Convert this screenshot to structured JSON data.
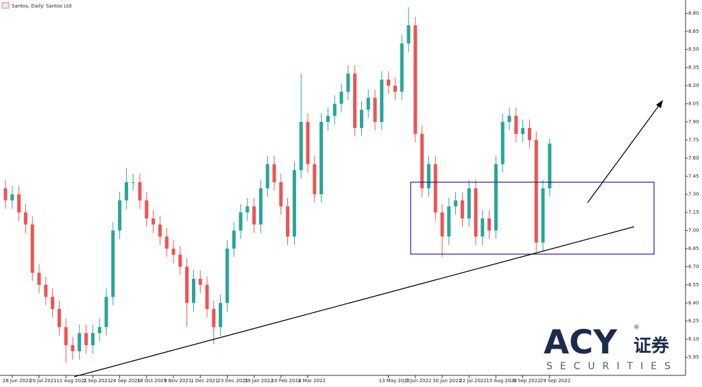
{
  "chart_data": {
    "type": "candlestick",
    "title": "Santos, Daily: Santos Ltd",
    "categories": [
      null,
      "28 Jun 2021",
      null,
      null,
      null,
      "20 Jul 2021",
      null,
      null,
      null,
      "11 Aug 2021",
      null,
      null,
      null,
      "2 Sep 2021",
      null,
      null,
      null,
      "24 Sep 2021",
      null,
      null,
      null,
      "18 Oct 2021",
      null,
      null,
      null,
      "9 Nov 2021",
      null,
      null,
      null,
      "1 Dec 2021",
      null,
      null,
      null,
      "23 Dec 2021",
      null,
      null,
      null,
      "19 Jan 2022",
      null,
      null,
      null,
      "10 Feb 2022",
      null,
      null,
      null,
      "4 Mar 2022",
      null,
      null,
      null,
      null,
      null,
      null,
      null,
      null,
      null,
      null,
      null,
      "13 May 2022",
      null,
      null,
      null,
      "7 Jun 2022",
      null,
      null,
      null,
      "30 Jun 2022",
      null,
      null,
      null,
      "22 Jul 2022",
      null,
      null,
      null,
      "15 Aug 2022",
      null,
      null,
      null,
      "6 Sep 2022",
      null,
      null,
      null,
      "29 Sep 2022"
    ],
    "open": [
      7.35,
      7.25,
      7.3,
      7.15,
      7.05,
      6.65,
      6.55,
      6.45,
      6.35,
      6.2,
      6.05,
      6.0,
      6.15,
      6.05,
      6.15,
      6.2,
      6.45,
      7.0,
      7.25,
      7.4,
      7.4,
      7.25,
      7.1,
      7.05,
      6.95,
      6.85,
      6.8,
      6.7,
      6.4,
      6.6,
      6.55,
      6.35,
      6.2,
      6.4,
      6.85,
      7.0,
      7.15,
      7.2,
      7.05,
      7.35,
      7.55,
      7.4,
      7.2,
      6.95,
      7.5,
      7.9,
      7.55,
      7.3,
      7.9,
      7.95,
      8.05,
      8.15,
      8.3,
      7.85,
      8.0,
      8.1,
      7.9,
      8.25,
      8.2,
      8.15,
      8.55,
      8.7,
      7.8,
      7.35,
      7.55,
      7.15,
      6.95,
      7.2,
      7.25,
      7.1,
      7.35,
      6.95,
      7.1,
      7.0,
      7.55,
      7.9,
      7.95,
      7.8,
      7.85,
      7.75,
      6.9,
      7.35
    ],
    "high": [
      7.42,
      7.37,
      7.37,
      7.22,
      7.12,
      6.72,
      6.62,
      6.52,
      6.42,
      6.27,
      6.12,
      6.22,
      6.22,
      6.22,
      6.27,
      6.52,
      7.07,
      7.32,
      7.52,
      7.47,
      7.47,
      7.32,
      7.17,
      7.12,
      7.02,
      6.92,
      6.87,
      6.77,
      6.67,
      6.67,
      6.62,
      6.42,
      6.47,
      6.92,
      7.07,
      7.22,
      7.27,
      7.27,
      7.42,
      7.62,
      7.62,
      7.47,
      7.27,
      7.57,
      8.3,
      7.97,
      7.62,
      7.97,
      8.02,
      8.12,
      8.22,
      8.37,
      8.37,
      8.07,
      8.17,
      8.17,
      8.32,
      8.32,
      8.27,
      8.62,
      8.85,
      8.77,
      7.87,
      7.62,
      7.62,
      7.22,
      7.27,
      7.32,
      7.32,
      7.42,
      7.42,
      7.17,
      7.17,
      7.62,
      7.97,
      8.02,
      8.02,
      7.92,
      7.92,
      7.82,
      7.42,
      7.76
    ],
    "low": [
      7.18,
      7.18,
      7.08,
      6.98,
      6.58,
      6.48,
      6.38,
      6.28,
      6.13,
      5.9,
      5.93,
      5.93,
      5.98,
      5.98,
      6.08,
      6.13,
      6.38,
      6.93,
      7.18,
      7.33,
      7.18,
      7.03,
      6.98,
      6.88,
      6.78,
      6.73,
      6.63,
      6.2,
      6.33,
      6.48,
      6.28,
      6.06,
      6.13,
      6.33,
      6.78,
      6.93,
      7.08,
      6.98,
      6.98,
      7.28,
      7.33,
      7.13,
      6.88,
      6.88,
      7.43,
      7.48,
      7.23,
      7.23,
      7.83,
      7.88,
      7.98,
      8.08,
      7.78,
      7.78,
      7.93,
      7.83,
      7.83,
      8.13,
      8.08,
      8.08,
      8.48,
      7.73,
      7.28,
      7.28,
      7.08,
      6.78,
      6.88,
      7.13,
      7.03,
      7.03,
      6.88,
      6.88,
      6.93,
      6.93,
      7.48,
      7.83,
      7.73,
      7.73,
      7.68,
      6.82,
      6.83,
      7.28
    ],
    "close": [
      7.25,
      7.3,
      7.15,
      7.05,
      6.65,
      6.55,
      6.45,
      6.35,
      6.2,
      6.05,
      6.0,
      6.15,
      6.05,
      6.15,
      6.2,
      6.45,
      7.0,
      7.25,
      7.4,
      7.4,
      7.25,
      7.1,
      7.05,
      6.95,
      6.85,
      6.8,
      6.7,
      6.4,
      6.6,
      6.55,
      6.35,
      6.2,
      6.4,
      6.85,
      7.0,
      7.15,
      7.2,
      7.05,
      7.35,
      7.55,
      7.4,
      7.2,
      6.95,
      7.5,
      7.9,
      7.55,
      7.3,
      7.9,
      7.95,
      8.05,
      8.15,
      8.3,
      7.85,
      8.0,
      8.1,
      7.9,
      8.25,
      8.2,
      8.15,
      8.55,
      8.7,
      7.8,
      7.35,
      7.55,
      7.15,
      6.95,
      7.2,
      7.25,
      7.1,
      7.35,
      6.95,
      7.1,
      7.0,
      7.55,
      7.9,
      7.95,
      7.8,
      7.85,
      7.75,
      6.9,
      7.35,
      7.72
    ],
    "up_color": "#26a69a",
    "down_color": "#ef5350",
    "ylim": [
      5.8,
      8.91
    ],
    "yticks": [
      5.95,
      {
        "value": 6.1,
        "label": "6.10"
      },
      6.25,
      {
        "value": 6.4,
        "label": "6.40"
      },
      6.55,
      {
        "value": 6.7,
        "label": "6.70"
      },
      6.85,
      {
        "value": 7.0,
        "label": "7.00"
      },
      7.15,
      {
        "value": 7.3,
        "label": "7.30"
      },
      7.45,
      {
        "value": 7.6,
        "label": "7.60"
      },
      7.75,
      {
        "value": 7.9,
        "label": "7.90"
      },
      8.05,
      {
        "value": 8.2,
        "label": "8.20"
      },
      8.35,
      {
        "value": 8.5,
        "label": "8.50"
      },
      8.65,
      {
        "value": 8.8,
        "label": "8.80"
      }
    ]
  },
  "watermark": {
    "brand": "ACY",
    "mark": "®",
    "chinese": "证券",
    "tagline": "SECURITIES"
  }
}
